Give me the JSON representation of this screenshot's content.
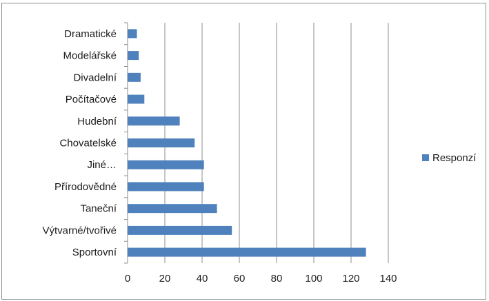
{
  "chart_data": {
    "type": "bar",
    "orientation": "horizontal",
    "title": "",
    "xlabel": "",
    "ylabel": "",
    "categories": [
      "Sportovní",
      "Výtvarné/tvořivé",
      "Taneční",
      "Přírodovědné",
      "Jiné…",
      "Chovatelské",
      "Hudební",
      "Počítačové",
      "Divadelní",
      "Modelářské",
      "Dramatické"
    ],
    "series": [
      {
        "name": "Responzí",
        "color": "#4f81bd",
        "values": [
          128,
          56,
          48,
          41,
          41,
          36,
          28,
          9,
          7,
          6,
          5
        ]
      }
    ],
    "xlim": [
      0,
      140
    ],
    "xticks": [
      "0",
      "20",
      "40",
      "60",
      "80",
      "100",
      "120",
      "140"
    ],
    "grid": true,
    "legend_position": "right"
  }
}
